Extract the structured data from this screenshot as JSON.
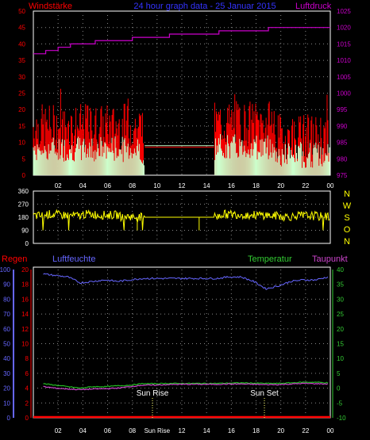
{
  "header": {
    "left_title": "Windstärke",
    "center_title": "24 hour graph data - 25 Januar 2015",
    "right_title": "Luftdruck"
  },
  "colors": {
    "wind": "#ff0000",
    "gust_fill": "#ccffcc",
    "pressure": "#cc00cc",
    "direction": "#ffff00",
    "humidity": "#6666ff",
    "temperature": "#22bb22",
    "dewpoint": "#cc44cc",
    "rain": "#ff0000",
    "axis_left": "#ff0000",
    "axis_blue": "#6666ff",
    "axis_green": "#33cc33",
    "grid": "#888888"
  },
  "time_ticks": [
    "02",
    "04",
    "06",
    "08",
    "10",
    "12",
    "14",
    "16",
    "18",
    "20",
    "22",
    "00"
  ],
  "bottom_time_ticks": [
    "02",
    "04",
    "06",
    "08",
    "Sun Rise",
    "12",
    "14",
    "16",
    "18",
    "20",
    "22",
    "00"
  ],
  "panel_wind": {
    "left_axis": [
      "0",
      "5",
      "10",
      "15",
      "20",
      "25",
      "30",
      "35",
      "40",
      "45",
      "50"
    ],
    "right_axis": [
      "975",
      "980",
      "985",
      "990",
      "995",
      "1000",
      "1005",
      "1010",
      "1015",
      "1020",
      "1025"
    ]
  },
  "panel_direction": {
    "left_axis": [
      "0",
      "90",
      "180",
      "270",
      "360"
    ],
    "compass": [
      "N",
      "W",
      "S",
      "O",
      "N"
    ]
  },
  "panel_bottom": {
    "rain_label": "Regen",
    "humidity_label": "Luftfeuchte",
    "temperature_label": "Temperatur",
    "dewpoint_label": "Taupunkt",
    "left_axis": [
      "0",
      "10",
      "20",
      "30",
      "40",
      "50",
      "60",
      "70",
      "80",
      "90",
      "100"
    ],
    "right_axis": [
      "-10",
      "-5",
      "0",
      "5",
      "10",
      "15",
      "20",
      "25",
      "30",
      "35",
      "40"
    ],
    "rain_axis": [
      "0",
      "2",
      "4",
      "6",
      "8",
      "10",
      "12",
      "14",
      "16",
      "18",
      "20"
    ],
    "sunrise_label": "Sun Rise",
    "sunset_label": "Sun Set"
  },
  "chart_data": [
    {
      "type": "line",
      "title": "Windstärke",
      "ylabel": "Windstärke",
      "y2label": "Luftdruck",
      "xlabel": "",
      "ylim": [
        0,
        50
      ],
      "y2lim": [
        975,
        1025
      ],
      "x": [
        "01",
        "02",
        "03",
        "04",
        "05",
        "06",
        "07",
        "08",
        "09",
        "10",
        "11",
        "12",
        "13",
        "14",
        "15",
        "16",
        "17",
        "18",
        "19",
        "20",
        "21",
        "22",
        "23",
        "00"
      ],
      "series": [
        {
          "name": "Luftdruck",
          "axis": "right",
          "values": [
            1012,
            1013,
            1014,
            1015,
            1015,
            1016,
            1016,
            1016,
            1017,
            1017,
            1017,
            1018,
            1018,
            1018,
            1018,
            1019,
            1019,
            1019,
            1019,
            1020,
            1020,
            1020,
            1020,
            1020
          ]
        }
      ]
    },
    {
      "type": "scatter",
      "title": "",
      "xlabel": "",
      "ylabel": "",
      "ylim": [
        0,
        360
      ],
      "x": [
        "01",
        "02",
        "03",
        "04",
        "05",
        "06",
        "07",
        "08",
        "09",
        "10",
        "11",
        "12",
        "13",
        "14",
        "15",
        "16",
        "17",
        "18",
        "19",
        "20",
        "21",
        "22",
        "23",
        "00"
      ],
      "series": [
        {
          "values": [
            190,
            200,
            195,
            190,
            200,
            195,
            195,
            185,
            180,
            180,
            180,
            180,
            180,
            180,
            185,
            200,
            200,
            195,
            195,
            190,
            185,
            190,
            190,
            185
          ]
        }
      ]
    },
    {
      "type": "line",
      "title": "",
      "xlabel": "",
      "ylabel": "Luftfeuchte",
      "ylim": [
        0,
        100
      ],
      "y2lim": [
        -10,
        40
      ],
      "x": [
        "01",
        "02",
        "03",
        "04",
        "05",
        "06",
        "07",
        "08",
        "09",
        "10",
        "11",
        "12",
        "13",
        "14",
        "15",
        "16",
        "17",
        "18",
        "19",
        "20",
        "21",
        "22",
        "23",
        "00"
      ],
      "series": [
        {
          "name": "Luftfeuchte",
          "axis": "left",
          "values": [
            97,
            96,
            95,
            91,
            92,
            93,
            92,
            93,
            94,
            94,
            94,
            94,
            94,
            94,
            94,
            95,
            95,
            92,
            87,
            89,
            92,
            93,
            93,
            95
          ]
        },
        {
          "name": "Temperatur",
          "axis": "right",
          "values": [
            1.5,
            1,
            0.5,
            0,
            0.5,
            0.5,
            0.8,
            1,
            1.5,
            1.5,
            1.6,
            1.6,
            1.6,
            1.6,
            1.6,
            1.7,
            1.8,
            1.7,
            1.6,
            1.6,
            1.8,
            2,
            2,
            1.8
          ]
        },
        {
          "name": "Taupunkt",
          "axis": "right",
          "values": [
            0.5,
            0,
            -0.3,
            -0.5,
            -0.3,
            -0.2,
            0,
            0.5,
            1,
            1,
            1.2,
            1.3,
            1.3,
            1.3,
            1.3,
            1.4,
            1.4,
            1.3,
            1.2,
            1.2,
            1.4,
            1.6,
            1.5,
            1.4
          ]
        },
        {
          "name": "Regen",
          "axis": "rain",
          "values": [
            0,
            0,
            0,
            0,
            0,
            0,
            0,
            0,
            0,
            0,
            0,
            0,
            0,
            0,
            0,
            0,
            0,
            0,
            0,
            0,
            0,
            0,
            0,
            0
          ]
        }
      ]
    }
  ]
}
